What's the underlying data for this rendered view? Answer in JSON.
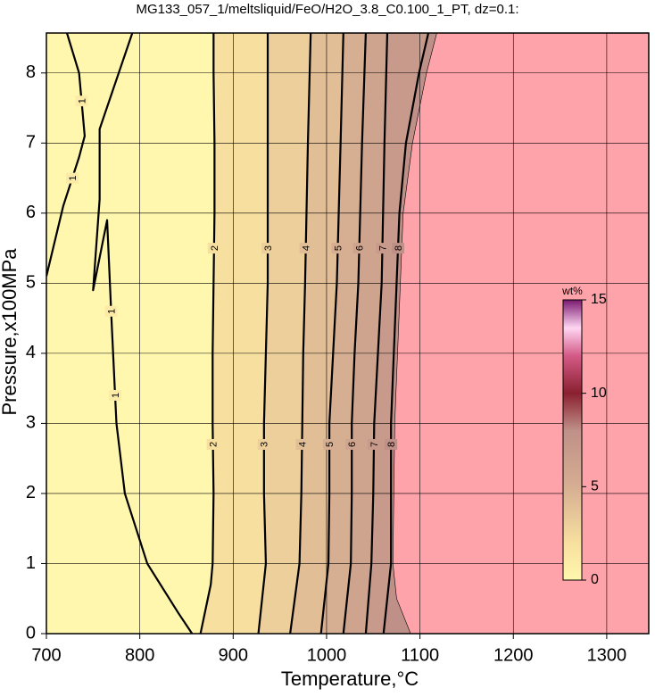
{
  "chart_data": {
    "type": "contour",
    "title": "MG133_057_1/meltsliquid/FeO/H2O_3.8_C0.100_1_PT, dz=0.1:",
    "x_label": "Temperature,°C",
    "y_label": "Pressure,x100MPa",
    "xlim": [
      700,
      1345
    ],
    "ylim": [
      0,
      8.57
    ],
    "xticks": [
      700,
      800,
      900,
      1000,
      1100,
      1200,
      1300
    ],
    "yticks": [
      0,
      1,
      2,
      3,
      4,
      5,
      6,
      7,
      8
    ],
    "grid": true,
    "contours": [
      {
        "level": 1,
        "label_at": [
          7.6,
          6.5,
          4.6,
          3.4
        ],
        "t": [
          700,
          718,
          735,
          741,
          735,
          722,
          null,
          792,
          757,
          757,
          750,
          765,
          770,
          775,
          784,
          808,
          841,
          856
        ],
        "p": [
          5.1,
          6.1,
          6.8,
          7.1,
          8.0,
          8.57,
          null,
          8.57,
          7.2,
          6.2,
          4.9,
          5.9,
          4.4,
          3.0,
          2.0,
          1.0,
          0.3,
          0
        ]
      },
      {
        "level": 2,
        "label_at": [
          5.5,
          2.7
        ],
        "t": [
          865,
          876,
          878,
          879,
          878,
          878,
          879,
          880,
          880,
          879,
          879
        ],
        "p": [
          0,
          0.7,
          1,
          2,
          3,
          4,
          5,
          6,
          7,
          8,
          8.57
        ]
      },
      {
        "level": 3,
        "label_at": [
          5.5,
          2.7
        ],
        "t": [
          927,
          935,
          933,
          933,
          935,
          937,
          937,
          937
        ],
        "p": [
          0,
          1,
          2,
          3,
          4,
          5,
          7,
          8.57
        ]
      },
      {
        "level": 4,
        "label_at": [
          5.5,
          2.7
        ],
        "t": [
          961,
          971,
          973,
          974,
          975,
          977,
          980,
          983
        ],
        "p": [
          0,
          1,
          2,
          3,
          4,
          5,
          7,
          8.57
        ]
      },
      {
        "level": 5,
        "label_at": [
          5.5,
          2.7
        ],
        "t": [
          994,
          1002,
          1003,
          1003,
          1007,
          1011,
          1015,
          1018
        ],
        "p": [
          0,
          1,
          2,
          3,
          4,
          5,
          7,
          8.57
        ]
      },
      {
        "level": 6,
        "label_at": [
          5.5,
          2.7
        ],
        "t": [
          1018,
          1026,
          1027,
          1027,
          1030,
          1034,
          1038,
          1042
        ],
        "p": [
          0,
          1,
          2,
          3,
          4,
          5,
          7,
          8.57
        ]
      },
      {
        "level": 7,
        "label_at": [
          5.5,
          2.7
        ],
        "t": [
          1042,
          1048,
          1050,
          1051,
          1055,
          1059,
          1062,
          1065
        ],
        "p": [
          0,
          1,
          2,
          3,
          4,
          5,
          7,
          8.57
        ]
      },
      {
        "level": 8,
        "label_at": [
          5.5,
          2.7
        ],
        "t": [
          1061,
          1069,
          1069,
          1069,
          1072,
          1075,
          1078,
          1085,
          1099,
          1109
        ],
        "p": [
          0,
          1,
          2,
          3,
          4,
          5,
          6,
          7,
          8,
          8.57
        ]
      }
    ],
    "boundary": {
      "color": "#ffa3aa",
      "t": [
        1090,
        1075,
        1071,
        1072,
        1073,
        1076,
        1079,
        1082,
        1092,
        1107,
        1118
      ],
      "p": [
        0,
        0.5,
        1,
        2,
        3,
        4,
        5,
        6,
        7,
        8,
        8.57
      ]
    },
    "colorbar": {
      "label": "wt%",
      "lim": [
        0,
        15
      ],
      "ticks": [
        0,
        5,
        10,
        15
      ]
    },
    "colormap": [
      {
        "value": 0,
        "color": "#fff7ad"
      },
      {
        "value": 2,
        "color": "#f7df9f"
      },
      {
        "value": 5,
        "color": "#d6ae92"
      },
      {
        "value": 8,
        "color": "#bf9088"
      },
      {
        "value": 10,
        "color": "#8a2030"
      },
      {
        "value": 12,
        "color": "#d35a86"
      },
      {
        "value": 13.5,
        "color": "#ffd6f2"
      },
      {
        "value": 15,
        "color": "#7a1a70"
      }
    ]
  }
}
